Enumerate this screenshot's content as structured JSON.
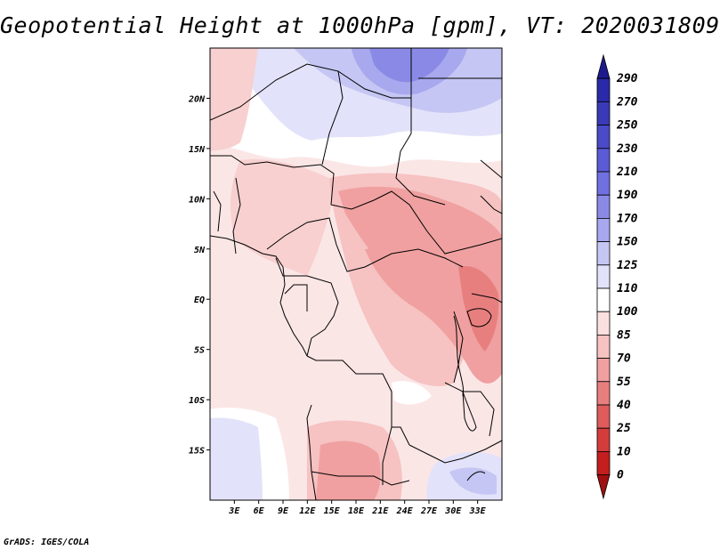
{
  "title": "Geopotential Height at 1000hPa [gpm], VT: 2020031809",
  "credit": "GrADS: IGES/COLA",
  "map": {
    "lon_range": [
      0,
      36
    ],
    "lat_range": [
      -20,
      25
    ],
    "lat_ticks": [
      {
        "value": 20,
        "label": "20N"
      },
      {
        "value": 15,
        "label": "15N"
      },
      {
        "value": 10,
        "label": "10N"
      },
      {
        "value": 5,
        "label": "5N"
      },
      {
        "value": 0,
        "label": "EQ"
      },
      {
        "value": -5,
        "label": "5S"
      },
      {
        "value": -10,
        "label": "10S"
      },
      {
        "value": -15,
        "label": "15S"
      }
    ],
    "lon_ticks": [
      {
        "value": 3,
        "label": "3E"
      },
      {
        "value": 6,
        "label": "6E"
      },
      {
        "value": 9,
        "label": "9E"
      },
      {
        "value": 12,
        "label": "12E"
      },
      {
        "value": 15,
        "label": "15E"
      },
      {
        "value": 18,
        "label": "18E"
      },
      {
        "value": 21,
        "label": "21E"
      },
      {
        "value": 24,
        "label": "24E"
      },
      {
        "value": 27,
        "label": "27E"
      },
      {
        "value": 30,
        "label": "30E"
      },
      {
        "value": 33,
        "label": "33E"
      }
    ]
  },
  "colorbar": {
    "levels": [
      "290",
      "270",
      "250",
      "230",
      "210",
      "190",
      "170",
      "150",
      "125",
      "110",
      "100",
      "85",
      "70",
      "55",
      "40",
      "25",
      "10",
      "0"
    ],
    "colors": [
      "#1c1a8c",
      "#2a2aa8",
      "#3a3ab8",
      "#4b4bc8",
      "#5b5bd6",
      "#7070e0",
      "#8a8ae6",
      "#a8a8ee",
      "#c6c6f4",
      "#e2e2fa",
      "#ffffff",
      "#fbe0e0",
      "#f6c2c2",
      "#f0a0a0",
      "#e87f7f",
      "#de5c5c",
      "#d43c3c",
      "#c41e1e",
      "#a01010"
    ]
  }
}
